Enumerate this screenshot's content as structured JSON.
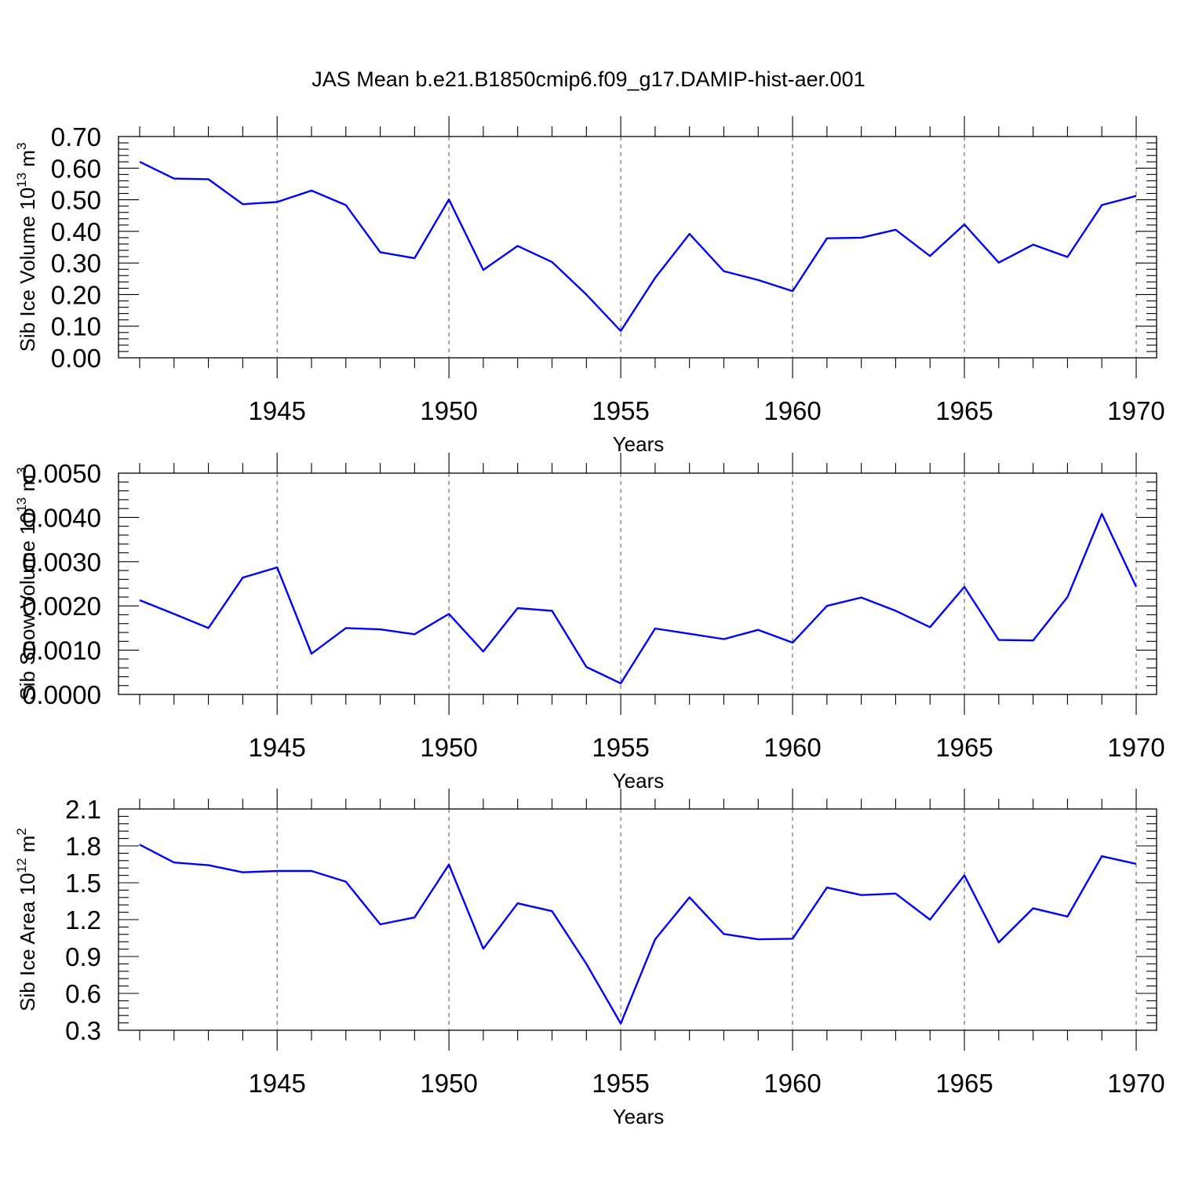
{
  "figure": {
    "title": "JAS Mean b.e21.B1850cmip6.f09_g17.DAMIP-hist-aer.001",
    "line_color": "#0000ff"
  },
  "chart_data": [
    {
      "type": "line",
      "xlabel": "Years",
      "ylabel": "Sib Ice Volume 10",
      "ylabel_exp": "13",
      "ylabel_unit": " m",
      "ylabel_unit_exp": "3",
      "xlim": [
        1941,
        1970
      ],
      "ylim": [
        0.0,
        0.7
      ],
      "x_ticks": [
        1945,
        1950,
        1955,
        1960,
        1965,
        1970
      ],
      "x_tick_labels": [
        "1945",
        "1950",
        "1955",
        "1960",
        "1965",
        "1970"
      ],
      "y_ticks": [
        0.0,
        0.1,
        0.2,
        0.3,
        0.4,
        0.5,
        0.6,
        0.7
      ],
      "y_tick_labels": [
        "0.00",
        "0.10",
        "0.20",
        "0.30",
        "0.40",
        "0.50",
        "0.60",
        "0.70"
      ],
      "grid": "dashed vertical at major x ticks",
      "x": [
        1941,
        1942,
        1943,
        1944,
        1945,
        1946,
        1947,
        1948,
        1949,
        1950,
        1951,
        1952,
        1953,
        1954,
        1955,
        1956,
        1957,
        1958,
        1959,
        1960,
        1961,
        1962,
        1963,
        1964,
        1965,
        1966,
        1967,
        1968,
        1969,
        1970
      ],
      "series": [
        {
          "values": [
            0.62,
            0.567,
            0.565,
            0.486,
            0.493,
            0.529,
            0.483,
            0.334,
            0.315,
            0.501,
            0.278,
            0.354,
            0.303,
            0.2,
            0.085,
            0.253,
            0.392,
            0.274,
            0.246,
            0.211,
            0.378,
            0.38,
            0.405,
            0.322,
            0.422,
            0.301,
            0.358,
            0.319,
            0.483,
            0.512
          ]
        }
      ]
    },
    {
      "type": "line",
      "xlabel": "Years",
      "ylabel": "Sib Snow Volume 10",
      "ylabel_exp": "13",
      "ylabel_unit": " m",
      "ylabel_unit_exp": "3",
      "xlim": [
        1941,
        1970
      ],
      "ylim": [
        0.0,
        0.005
      ],
      "x_ticks": [
        1945,
        1950,
        1955,
        1960,
        1965,
        1970
      ],
      "x_tick_labels": [
        "1945",
        "1950",
        "1955",
        "1960",
        "1965",
        "1970"
      ],
      "y_ticks": [
        0.0,
        0.001,
        0.002,
        0.003,
        0.004,
        0.005
      ],
      "y_tick_labels": [
        "0.0000",
        "0.0010",
        "0.0020",
        "0.0030",
        "0.0040",
        "0.0050"
      ],
      "grid": "dashed vertical at major x ticks",
      "x": [
        1941,
        1942,
        1943,
        1944,
        1945,
        1946,
        1947,
        1948,
        1949,
        1950,
        1951,
        1952,
        1953,
        1954,
        1955,
        1956,
        1957,
        1958,
        1959,
        1960,
        1961,
        1962,
        1963,
        1964,
        1965,
        1966,
        1967,
        1968,
        1969,
        1970
      ],
      "series": [
        {
          "values": [
            0.00213,
            0.00182,
            0.0015,
            0.00264,
            0.00287,
            0.00092,
            0.0015,
            0.00147,
            0.00136,
            0.00182,
            0.00097,
            0.00195,
            0.00189,
            0.00062,
            0.00025,
            0.00149,
            0.00137,
            0.00125,
            0.00146,
            0.00117,
            0.002,
            0.00219,
            0.00189,
            0.00152,
            0.00243,
            0.00123,
            0.00122,
            0.0022,
            0.00408,
            0.00243
          ]
        }
      ]
    },
    {
      "type": "line",
      "xlabel": "Years",
      "ylabel": "Sib Ice Area 10",
      "ylabel_exp": "12",
      "ylabel_unit": " m",
      "ylabel_unit_exp": "2",
      "xlim": [
        1941,
        1970
      ],
      "ylim": [
        0.3,
        2.1
      ],
      "x_ticks": [
        1945,
        1950,
        1955,
        1960,
        1965,
        1970
      ],
      "x_tick_labels": [
        "1945",
        "1950",
        "1955",
        "1960",
        "1965",
        "1970"
      ],
      "y_ticks": [
        0.3,
        0.6,
        0.9,
        1.2,
        1.5,
        1.8,
        2.1
      ],
      "y_tick_labels": [
        "0.3",
        "0.6",
        "0.9",
        "1.2",
        "1.5",
        "1.8",
        "2.1"
      ],
      "grid": "dashed vertical at major x ticks",
      "x": [
        1941,
        1942,
        1943,
        1944,
        1945,
        1946,
        1947,
        1948,
        1949,
        1950,
        1951,
        1952,
        1953,
        1954,
        1955,
        1956,
        1957,
        1958,
        1959,
        1960,
        1961,
        1962,
        1963,
        1964,
        1965,
        1966,
        1967,
        1968,
        1969,
        1970
      ],
      "series": [
        {
          "values": [
            1.81,
            1.665,
            1.643,
            1.585,
            1.596,
            1.596,
            1.509,
            1.162,
            1.218,
            1.648,
            0.963,
            1.333,
            1.269,
            0.84,
            0.355,
            1.04,
            1.381,
            1.083,
            1.04,
            1.045,
            1.461,
            1.4,
            1.412,
            1.2,
            1.56,
            1.015,
            1.292,
            1.225,
            1.716,
            1.654
          ]
        }
      ]
    }
  ]
}
